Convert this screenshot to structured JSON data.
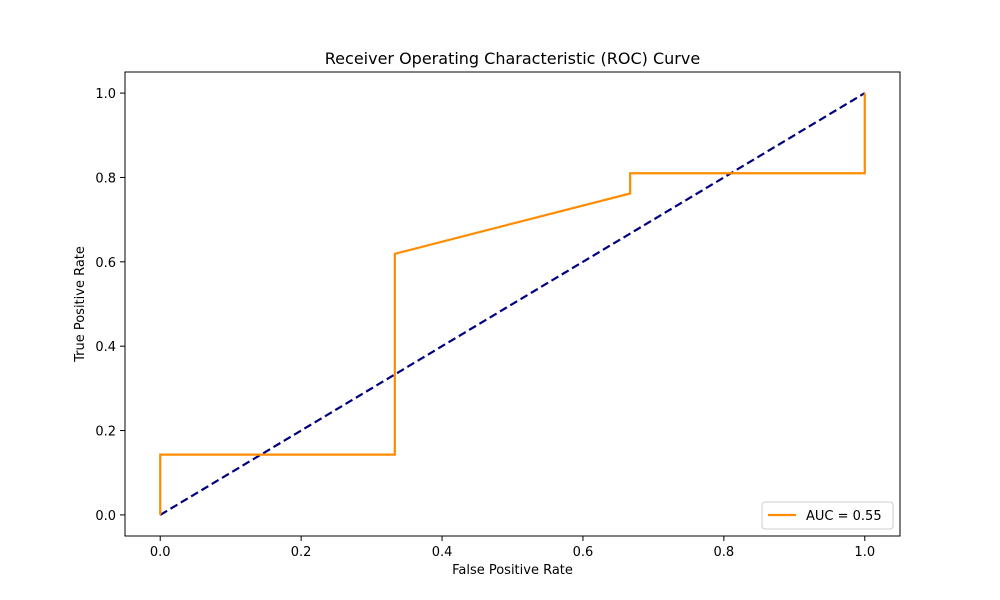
{
  "chart_data": {
    "type": "line",
    "title": "Receiver Operating Characteristic (ROC) Curve",
    "xlabel": "False Positive Rate",
    "ylabel": "True Positive Rate",
    "xlim": [
      -0.05,
      1.05
    ],
    "ylim": [
      -0.05,
      1.05
    ],
    "xticks": [
      0.0,
      0.2,
      0.4,
      0.6,
      0.8,
      1.0
    ],
    "xtick_labels": [
      "0.0",
      "0.2",
      "0.4",
      "0.6",
      "0.8",
      "1.0"
    ],
    "yticks": [
      0.0,
      0.2,
      0.4,
      0.6,
      0.8,
      1.0
    ],
    "ytick_labels": [
      "0.0",
      "0.2",
      "0.4",
      "0.6",
      "0.8",
      "1.0"
    ],
    "grid": false,
    "legend_position": "lower right",
    "series": [
      {
        "name": "AUC = 0.55",
        "color": "#ff8c00",
        "style": "solid",
        "x": [
          0.0,
          0.0,
          0.333,
          0.333,
          0.667,
          0.667,
          1.0,
          1.0
        ],
        "y": [
          0.0,
          0.143,
          0.143,
          0.619,
          0.762,
          0.81,
          0.81,
          1.0
        ]
      },
      {
        "color": "#000080",
        "style": "dashed",
        "x": [
          0.0,
          1.0
        ],
        "y": [
          0.0,
          1.0
        ]
      }
    ]
  }
}
